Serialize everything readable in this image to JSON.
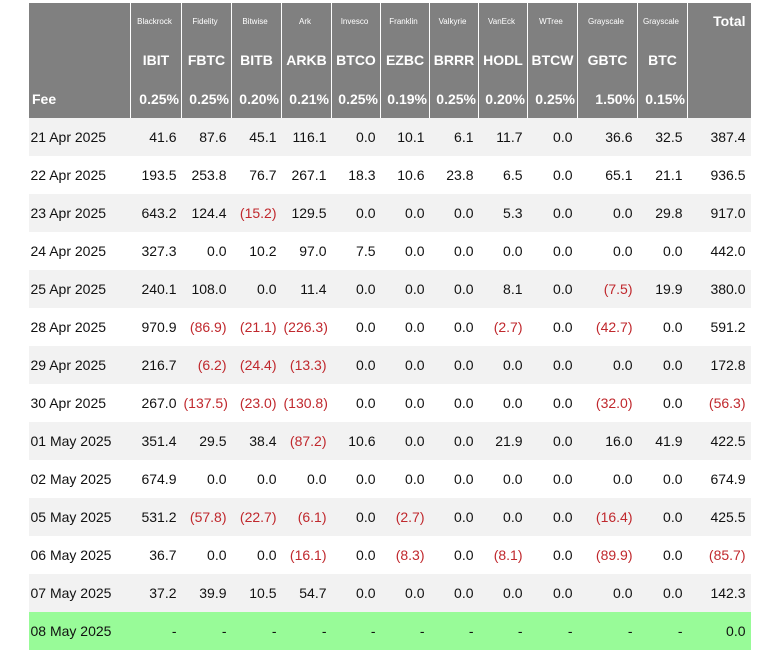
{
  "table": {
    "issuers": [
      "Blackrock",
      "Fidelity",
      "Bitwise",
      "Ark",
      "Invesco",
      "Franklin",
      "Valkyrie",
      "VanEck",
      "WTree",
      "Grayscale",
      "Grayscale"
    ],
    "total_label": "Total",
    "tickers": [
      "IBIT",
      "FBTC",
      "BITB",
      "ARKB",
      "BTCO",
      "EZBC",
      "BRRR",
      "HODL",
      "BTCW",
      "GBTC",
      "BTC"
    ],
    "fee_label": "Fee",
    "fees": [
      "0.25%",
      "0.25%",
      "0.20%",
      "0.21%",
      "0.25%",
      "0.19%",
      "0.25%",
      "0.20%",
      "0.25%",
      "1.50%",
      "0.15%"
    ],
    "negative_color": "#c0282d",
    "rows": [
      {
        "cells": [
          "21 Apr 2025",
          "41.6",
          "87.6",
          "45.1",
          "116.1",
          "0.0",
          "10.1",
          "6.1",
          "11.7",
          "0.0",
          "36.6",
          "32.5",
          "387.4"
        ]
      },
      {
        "cells": [
          "22 Apr 2025",
          "193.5",
          "253.8",
          "76.7",
          "267.1",
          "18.3",
          "10.6",
          "23.8",
          "6.5",
          "0.0",
          "65.1",
          "21.1",
          "936.5"
        ]
      },
      {
        "cells": [
          "23 Apr 2025",
          "643.2",
          "124.4",
          "(15.2)",
          "129.5",
          "0.0",
          "0.0",
          "0.0",
          "5.3",
          "0.0",
          "0.0",
          "29.8",
          "917.0"
        ]
      },
      {
        "cells": [
          "24 Apr 2025",
          "327.3",
          "0.0",
          "10.2",
          "97.0",
          "7.5",
          "0.0",
          "0.0",
          "0.0",
          "0.0",
          "0.0",
          "0.0",
          "442.0"
        ]
      },
      {
        "cells": [
          "25 Apr 2025",
          "240.1",
          "108.0",
          "0.0",
          "11.4",
          "0.0",
          "0.0",
          "0.0",
          "8.1",
          "0.0",
          "(7.5)",
          "19.9",
          "380.0"
        ]
      },
      {
        "cells": [
          "28 Apr 2025",
          "970.9",
          "(86.9)",
          "(21.1)",
          "(226.3)",
          "0.0",
          "0.0",
          "0.0",
          "(2.7)",
          "0.0",
          "(42.7)",
          "0.0",
          "591.2"
        ]
      },
      {
        "cells": [
          "29 Apr 2025",
          "216.7",
          "(6.2)",
          "(24.4)",
          "(13.3)",
          "0.0",
          "0.0",
          "0.0",
          "0.0",
          "0.0",
          "0.0",
          "0.0",
          "172.8"
        ]
      },
      {
        "cells": [
          "30 Apr 2025",
          "267.0",
          "(137.5)",
          "(23.0)",
          "(130.8)",
          "0.0",
          "0.0",
          "0.0",
          "0.0",
          "0.0",
          "(32.0)",
          "0.0",
          "(56.3)"
        ]
      },
      {
        "cells": [
          "01 May 2025",
          "351.4",
          "29.5",
          "38.4",
          "(87.2)",
          "10.6",
          "0.0",
          "0.0",
          "21.9",
          "0.0",
          "16.0",
          "41.9",
          "422.5"
        ]
      },
      {
        "cells": [
          "02 May 2025",
          "674.9",
          "0.0",
          "0.0",
          "0.0",
          "0.0",
          "0.0",
          "0.0",
          "0.0",
          "0.0",
          "0.0",
          "0.0",
          "674.9"
        ]
      },
      {
        "cells": [
          "05 May 2025",
          "531.2",
          "(57.8)",
          "(22.7)",
          "(6.1)",
          "0.0",
          "(2.7)",
          "0.0",
          "0.0",
          "0.0",
          "(16.4)",
          "0.0",
          "425.5"
        ]
      },
      {
        "cells": [
          "06 May 2025",
          "36.7",
          "0.0",
          "0.0",
          "(16.1)",
          "0.0",
          "(8.3)",
          "0.0",
          "(8.1)",
          "0.0",
          "(89.9)",
          "0.0",
          "(85.7)"
        ]
      },
      {
        "cells": [
          "07 May 2025",
          "37.2",
          "39.9",
          "10.5",
          "54.7",
          "0.0",
          "0.0",
          "0.0",
          "0.0",
          "0.0",
          "0.0",
          "0.0",
          "142.3"
        ]
      },
      {
        "cells": [
          "08 May 2025",
          "-",
          "-",
          "-",
          "-",
          "-",
          "-",
          "-",
          "-",
          "-",
          "-",
          "-",
          "0.0"
        ],
        "highlight": "#98fb98"
      }
    ]
  }
}
